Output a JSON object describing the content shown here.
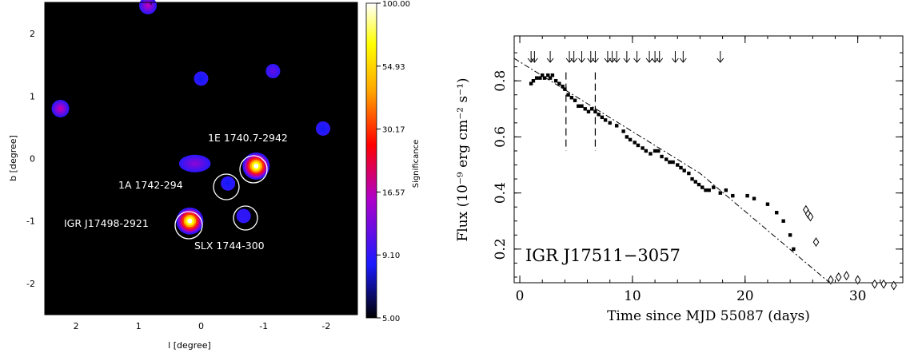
{
  "chart_data": [
    {
      "type": "heatmap",
      "xlabel": "l [degree]",
      "ylabel": "b [degree]",
      "xlim": [
        2.5,
        -2.5
      ],
      "ylim": [
        -2.5,
        2.5
      ],
      "x_ticks": [
        "2",
        "1",
        "0",
        "-1",
        "-2"
      ],
      "y_ticks": [
        "2",
        "1",
        "0",
        "-1",
        "-2"
      ],
      "colorbar": {
        "label": "Significance",
        "ticks": [
          "100.00",
          "54.93",
          "30.17",
          "16.57",
          "9.10",
          "5.00"
        ],
        "scale": "log",
        "range": [
          5.0,
          100.0
        ],
        "colors": [
          "#000000",
          "#1a1aff",
          "#c000c0",
          "#ff0000",
          "#ffa500",
          "#ffff00",
          "#ffffff"
        ]
      },
      "sources": [
        {
          "l": 0.85,
          "b": 2.45,
          "sig": 16
        },
        {
          "l": 2.25,
          "b": 0.8,
          "sig": 17
        },
        {
          "l": 0.0,
          "b": 1.28,
          "sig": 8
        },
        {
          "l": -1.15,
          "b": 1.4,
          "sig": 11
        },
        {
          "l": -1.95,
          "b": 0.48,
          "sig": 8
        },
        {
          "l": 0.1,
          "b": -0.08,
          "sig": 13
        },
        {
          "l": -0.88,
          "b": -0.12,
          "sig": 100
        },
        {
          "l": -0.43,
          "b": -0.4,
          "sig": 8
        },
        {
          "l": 0.18,
          "b": -1.0,
          "sig": 100
        },
        {
          "l": -0.68,
          "b": -0.92,
          "sig": 9
        }
      ],
      "annotations": [
        {
          "text": "1E 1740.7-2942"
        },
        {
          "text": "1A 1742-294"
        },
        {
          "text": "IGR J17498-2921"
        },
        {
          "text": "SLX 1744-300"
        }
      ]
    },
    {
      "type": "scatter",
      "title": "IGR J17511−3057",
      "xlabel": "Time since MJD 55087 (days)",
      "ylabel": "Flux (10⁻⁹ erg cm⁻² s⁻¹)",
      "xlim": [
        -0.5,
        34
      ],
      "ylim": [
        0.08,
        0.96
      ],
      "x_ticks": [
        0,
        10,
        20,
        30
      ],
      "y_ticks": [
        0.2,
        0.4,
        0.6,
        0.8
      ],
      "series": [
        {
          "marker": "square",
          "points": [
            [
              1,
              0.79
            ],
            [
              1.2,
              0.8
            ],
            [
              1.5,
              0.81
            ],
            [
              1.8,
              0.81
            ],
            [
              2,
              0.82
            ],
            [
              2.2,
              0.81
            ],
            [
              2.5,
              0.82
            ],
            [
              2.7,
              0.81
            ],
            [
              2.9,
              0.82
            ],
            [
              3.2,
              0.8
            ],
            [
              3.5,
              0.79
            ],
            [
              3.8,
              0.78
            ],
            [
              4,
              0.77
            ],
            [
              4.3,
              0.75
            ],
            [
              4.6,
              0.74
            ],
            [
              4.9,
              0.73
            ],
            [
              5.2,
              0.71
            ],
            [
              5.5,
              0.71
            ],
            [
              5.8,
              0.7
            ],
            [
              6.1,
              0.69
            ],
            [
              6.4,
              0.7
            ],
            [
              6.7,
              0.69
            ],
            [
              7,
              0.68
            ],
            [
              7.3,
              0.67
            ],
            [
              7.6,
              0.66
            ],
            [
              8,
              0.65
            ],
            [
              8.6,
              0.64
            ],
            [
              9.2,
              0.62
            ],
            [
              9.5,
              0.6
            ],
            [
              9.8,
              0.59
            ],
            [
              10.2,
              0.58
            ],
            [
              10.5,
              0.57
            ],
            [
              10.9,
              0.56
            ],
            [
              11.2,
              0.55
            ],
            [
              11.6,
              0.54
            ],
            [
              12,
              0.55
            ],
            [
              12.3,
              0.55
            ],
            [
              12.6,
              0.53
            ],
            [
              13,
              0.52
            ],
            [
              13.3,
              0.51
            ],
            [
              13.6,
              0.51
            ],
            [
              14,
              0.5
            ],
            [
              14.3,
              0.49
            ],
            [
              14.6,
              0.48
            ],
            [
              15,
              0.47
            ],
            [
              15.3,
              0.45
            ],
            [
              15.6,
              0.44
            ],
            [
              15.9,
              0.43
            ],
            [
              16.2,
              0.42
            ],
            [
              16.5,
              0.41
            ],
            [
              16.8,
              0.41
            ],
            [
              17.2,
              0.42
            ],
            [
              17.8,
              0.4
            ],
            [
              18.3,
              0.41
            ],
            [
              18.9,
              0.39
            ],
            [
              20.2,
              0.39
            ],
            [
              20.8,
              0.38
            ],
            [
              22,
              0.36
            ],
            [
              22.8,
              0.33
            ],
            [
              23.4,
              0.3
            ],
            [
              24,
              0.25
            ],
            [
              24.3,
              0.2
            ]
          ]
        },
        {
          "marker": "diamond",
          "points": [
            [
              25.4,
              0.34
            ],
            [
              25.6,
              0.325
            ],
            [
              25.8,
              0.315
            ],
            [
              26.3,
              0.225
            ],
            [
              27.6,
              0.09
            ],
            [
              28.3,
              0.1
            ],
            [
              29,
              0.105
            ],
            [
              30,
              0.09
            ],
            [
              31.5,
              0.075
            ],
            [
              32.3,
              0.075
            ],
            [
              33.2,
              0.07
            ]
          ]
        }
      ],
      "fit_line": [
        [
          -0.5,
          0.88
        ],
        [
          16,
          0.47
        ],
        [
          27.5,
          0.08
        ]
      ],
      "upper_limit_times": [
        1.0,
        1.3,
        2.7,
        4.4,
        4.8,
        5.5,
        6.3,
        6.7,
        7.8,
        8.2,
        8.6,
        9.5,
        10.4,
        11.5,
        12.0,
        12.4,
        13.8,
        14.5,
        17.8
      ],
      "vertical_markers": [
        4.1,
        6.7
      ]
    }
  ]
}
